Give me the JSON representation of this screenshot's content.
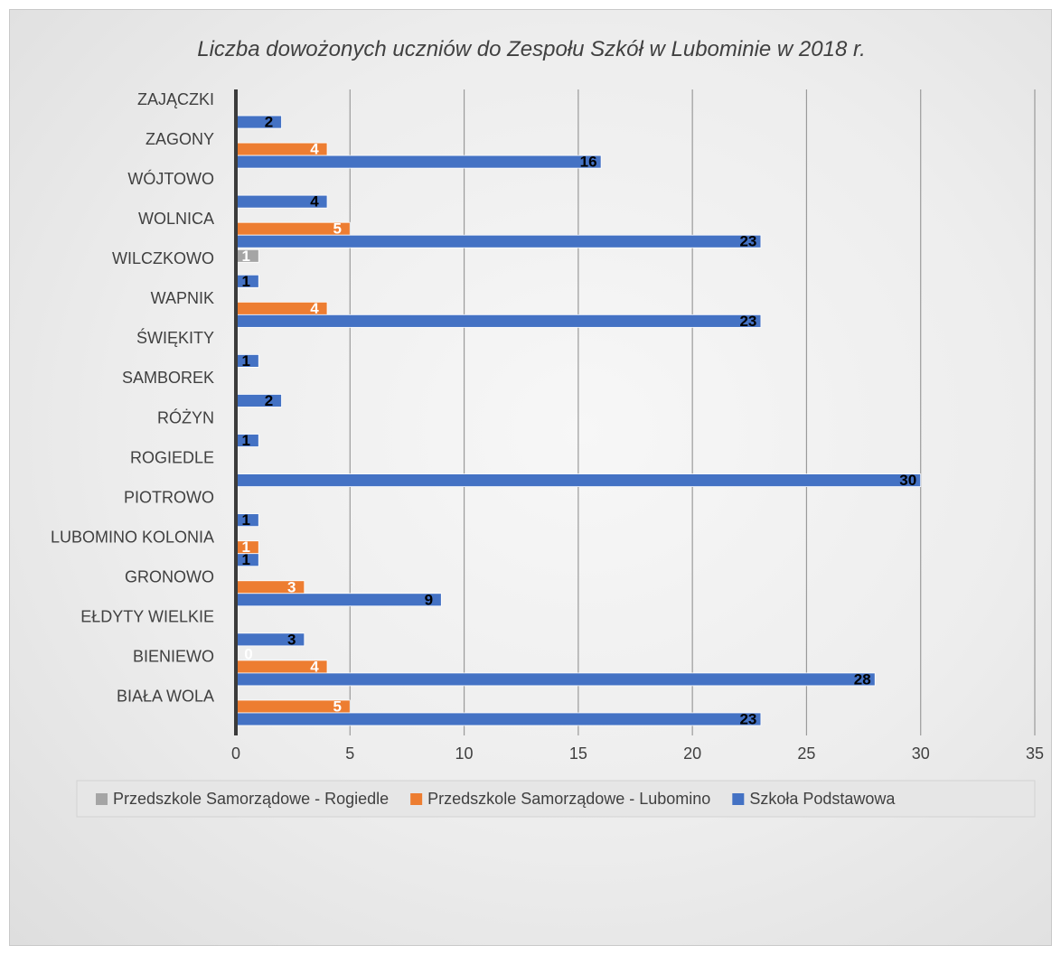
{
  "chart_data": {
    "type": "bar",
    "orientation": "horizontal",
    "title": "Liczba dowożonych uczniów do Zespołu Szkół w Lubominie w 2018 r.",
    "categories": [
      "ZAJĄCZKI",
      "ZAGONY",
      "WÓJTOWO",
      "WOLNICA",
      "WILCZKOWO",
      "WAPNIK",
      "ŚWIĘKITY",
      "SAMBOREK",
      "RÓŻYN",
      "ROGIEDLE",
      "PIOTROWO",
      "LUBOMINO KOLONIA",
      "GRONOWO",
      "EŁDYTY WIELKIE",
      "BIENIEWO",
      "BIAŁA WOLA"
    ],
    "series": [
      {
        "name": "Przedszkole Samorządowe - Rogiedle",
        "color": "#a5a5a5",
        "label_color": "#ffffff",
        "values": [
          null,
          null,
          null,
          null,
          1,
          null,
          null,
          null,
          null,
          null,
          null,
          null,
          null,
          null,
          0,
          null
        ]
      },
      {
        "name": "Przedszkole Samorządowe - Lubomino",
        "color": "#ed7d31",
        "label_color": "#ffffff",
        "values": [
          null,
          4,
          null,
          5,
          null,
          4,
          null,
          null,
          null,
          null,
          null,
          1,
          3,
          null,
          4,
          5
        ]
      },
      {
        "name": "Szkoła Podstawowa",
        "color": "#4472c4",
        "label_color": "#000000",
        "values": [
          2,
          16,
          4,
          23,
          1,
          23,
          1,
          2,
          1,
          30,
          1,
          1,
          9,
          3,
          28,
          23
        ]
      }
    ],
    "xlim": [
      0,
      35
    ],
    "xticks": [
      0,
      5,
      10,
      15,
      20,
      25,
      30,
      35
    ],
    "grid": true,
    "legend_position": "bottom"
  }
}
